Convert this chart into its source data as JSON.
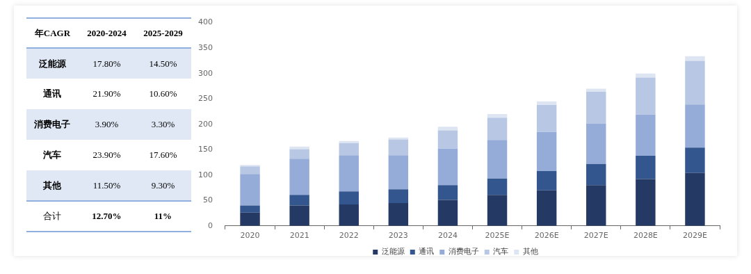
{
  "chart_data": [
    {
      "type": "other",
      "title": "年CAGR",
      "categories": [
        "2020-2024",
        "2025-2029"
      ],
      "y_categories": [
        "泛能源",
        "通讯",
        "消费电子",
        "汽车",
        "其他",
        "合计"
      ],
      "cell_labels": [
        [
          "17.80%",
          "14.50%"
        ],
        [
          "21.90%",
          "10.60%"
        ],
        [
          "3.90%",
          "3.30%"
        ],
        [
          "23.90%",
          "17.60%"
        ],
        [
          "11.50%",
          "9.30%"
        ],
        [
          "12.70%",
          "11%"
        ]
      ]
    },
    {
      "type": "bar",
      "stacked": true,
      "categories": [
        "2020",
        "2021",
        "2022",
        "2023",
        "2024",
        "2025E",
        "2026E",
        "2027E",
        "2028E",
        "2029E"
      ],
      "series": [
        {
          "name": "泛能源",
          "color": "#243a64",
          "values": [
            26,
            40,
            42,
            45,
            51,
            61,
            70,
            80,
            92,
            104
          ]
        },
        {
          "name": "通讯",
          "color": "#34568f",
          "values": [
            14,
            21,
            26,
            27,
            29,
            32,
            38,
            42,
            46,
            50
          ]
        },
        {
          "name": "消费电子",
          "color": "#95acd9",
          "values": [
            62,
            71,
            71,
            67,
            72,
            76,
            77,
            79,
            81,
            85
          ]
        },
        {
          "name": "汽车",
          "color": "#b8c8e4",
          "values": [
            15,
            19,
            24,
            31,
            36,
            44,
            53,
            63,
            73,
            86
          ]
        },
        {
          "name": "其他",
          "color": "#dde5f3",
          "values": [
            3,
            5,
            4,
            4,
            7,
            7,
            7,
            6,
            8,
            9
          ]
        }
      ],
      "ylim": [
        0,
        400
      ],
      "yticks": [
        0,
        50,
        100,
        150,
        200,
        250,
        300,
        350,
        400
      ],
      "legend": "bottom"
    }
  ]
}
